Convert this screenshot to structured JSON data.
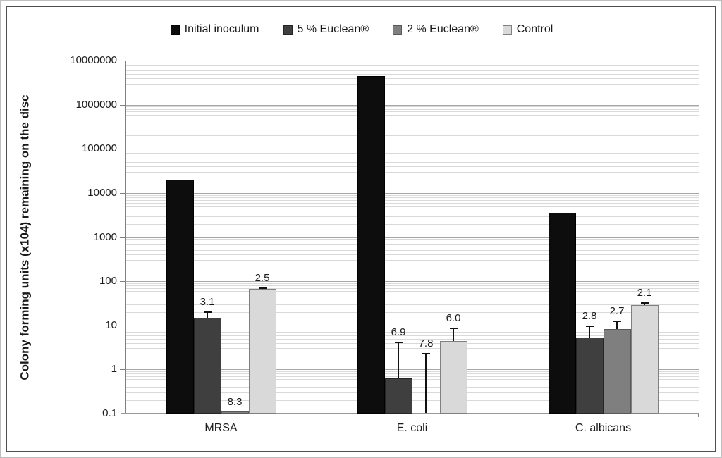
{
  "figure": {
    "background": "#ffffff",
    "border_color": "#4f4f4f"
  },
  "legend": {
    "position": "top",
    "items": [
      {
        "label": "Initial inoculum",
        "color": "#0d0d0d",
        "border": "#000000"
      },
      {
        "label": "5 % Euclean®",
        "color": "#3f3f3f",
        "border": "#262626"
      },
      {
        "label": "2 % Euclean®",
        "color": "#7f7f7f",
        "border": "#595959"
      },
      {
        "label": "Control",
        "color": "#d9d9d9",
        "border": "#808080"
      }
    ]
  },
  "y_axis": {
    "title": "Colony forming units (x104) remaining on the disc",
    "scale": "log",
    "tick_labels": [
      "10000000",
      "1000000",
      "100000",
      "10000",
      "1000",
      "100",
      "10",
      "1",
      "0.1"
    ]
  },
  "x_axis": {
    "categories": [
      "MRSA",
      "E. coli",
      "C. albicans"
    ]
  },
  "chart_data": {
    "type": "bar",
    "y_scale": "log",
    "ylim": [
      0.1,
      10000000
    ],
    "grid": "major and log-minor horizontal gridlines",
    "legend_position": "top",
    "title": "",
    "xlabel": "",
    "ylabel": "Colony forming units (x104) remaining on the disc",
    "categories": [
      "MRSA",
      "E. coli",
      "C. albicans"
    ],
    "series": [
      {
        "name": "Initial inoculum",
        "color": "#0d0d0d",
        "border": "#000000",
        "values": [
          20000,
          4500000,
          3600
        ],
        "error_high": [
          null,
          null,
          null
        ],
        "labels": [
          null,
          null,
          null
        ]
      },
      {
        "name": "5 % Euclean®",
        "color": "#3f3f3f",
        "border": "#262626",
        "values": [
          15,
          0.63,
          5.3
        ],
        "error_high": [
          21,
          4.2,
          10
        ],
        "labels": [
          "3.1",
          "6.9",
          "2.8"
        ]
      },
      {
        "name": "2 % Euclean®",
        "color": "#7f7f7f",
        "border": "#595959",
        "values": [
          0.11,
          0.1,
          8.3
        ],
        "error_high": [
          null,
          2.4,
          13
        ],
        "labels": [
          "8.3",
          "7.8",
          "2.7"
        ]
      },
      {
        "name": "Control",
        "color": "#d9d9d9",
        "border": "#808080",
        "values": [
          67,
          4.4,
          29
        ],
        "error_high": [
          72,
          8.9,
          33
        ],
        "labels": [
          "2.5",
          "6.0",
          "2.1"
        ]
      }
    ]
  }
}
